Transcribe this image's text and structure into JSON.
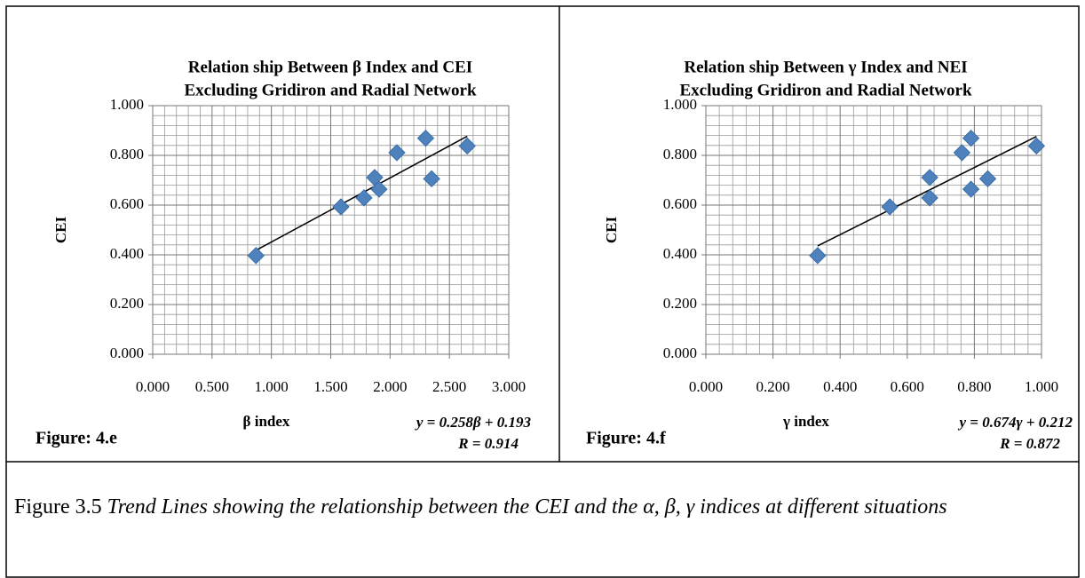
{
  "chart_data": [
    {
      "type": "scatter",
      "title": [
        "Relation ship Between β Index and CEI",
        "Excluding Gridiron and Radial Network"
      ],
      "x_label": "β index",
      "y_label": "CEI",
      "annotations": [
        "y = 0.258β + 0.193",
        "R = 0.914"
      ],
      "figure_label": "Figure: 4.e",
      "x": [
        0.87,
        1.586,
        1.78,
        1.87,
        1.907,
        2.057,
        2.3,
        2.35,
        2.65
      ],
      "values": [
        0.397,
        0.593,
        0.629,
        0.711,
        0.664,
        0.811,
        0.869,
        0.706,
        0.838
      ],
      "color": "#4f81bd",
      "trendline": {
        "x": [
          0.87,
          2.65
        ],
        "values": [
          0.418,
          0.877
        ]
      },
      "xlim": [
        0,
        3
      ],
      "ylim": [
        0,
        1
      ],
      "xticks": [
        {
          "value": 0,
          "label": "0.000"
        },
        {
          "value": 0.5,
          "label": "0.500"
        },
        {
          "value": 1,
          "label": "1.000"
        },
        {
          "value": 1.5,
          "label": "1.500"
        },
        {
          "value": 2,
          "label": "2.000"
        },
        {
          "value": 2.5,
          "label": "2.500"
        },
        {
          "value": 3,
          "label": "3.000"
        }
      ],
      "yticks": [
        {
          "value": 0,
          "label": "0.000"
        },
        {
          "value": 0.2,
          "label": "0.200"
        },
        {
          "value": 0.4,
          "label": "0.400"
        },
        {
          "value": 0.6,
          "label": "0.600"
        },
        {
          "value": 0.8,
          "label": "0.800"
        },
        {
          "value": 1,
          "label": "1.000"
        }
      ],
      "grid": true,
      "minor_divisions": 5
    },
    {
      "type": "scatter",
      "title": [
        "Relation ship Between γ Index and NEI",
        "Excluding Gridiron and Radial Network"
      ],
      "x_label": "γ index",
      "y_label": "CEI",
      "annotations": [
        "y = 0.674γ + 0.212",
        "R = 0.872"
      ],
      "figure_label": "Figure: 4.f",
      "x": [
        0.333,
        0.548,
        0.667,
        0.667,
        0.763,
        0.79,
        0.79,
        0.84,
        0.985
      ],
      "values": [
        0.397,
        0.593,
        0.629,
        0.711,
        0.811,
        0.869,
        0.664,
        0.706,
        0.838
      ],
      "color": "#4f81bd",
      "trendline": {
        "x": [
          0.333,
          0.985
        ],
        "values": [
          0.436,
          0.876
        ]
      },
      "xlim": [
        0,
        1
      ],
      "ylim": [
        0,
        1
      ],
      "xticks": [
        {
          "value": 0,
          "label": "0.000"
        },
        {
          "value": 0.2,
          "label": "0.200"
        },
        {
          "value": 0.4,
          "label": "0.400"
        },
        {
          "value": 0.6,
          "label": "0.600"
        },
        {
          "value": 0.8,
          "label": "0.800"
        },
        {
          "value": 1,
          "label": "1.000"
        }
      ],
      "yticks": [
        {
          "value": 0,
          "label": "0.000"
        },
        {
          "value": 0.2,
          "label": "0.200"
        },
        {
          "value": 0.4,
          "label": "0.400"
        },
        {
          "value": 0.6,
          "label": "0.600"
        },
        {
          "value": 0.8,
          "label": "0.800"
        },
        {
          "value": 1,
          "label": "1.000"
        }
      ],
      "grid": true,
      "minor_divisions": 5
    }
  ],
  "caption": {
    "label": "Figure 3.5",
    "text": "Trend Lines showing the relationship between the CEI and the α, β, γ indices at different situations"
  }
}
